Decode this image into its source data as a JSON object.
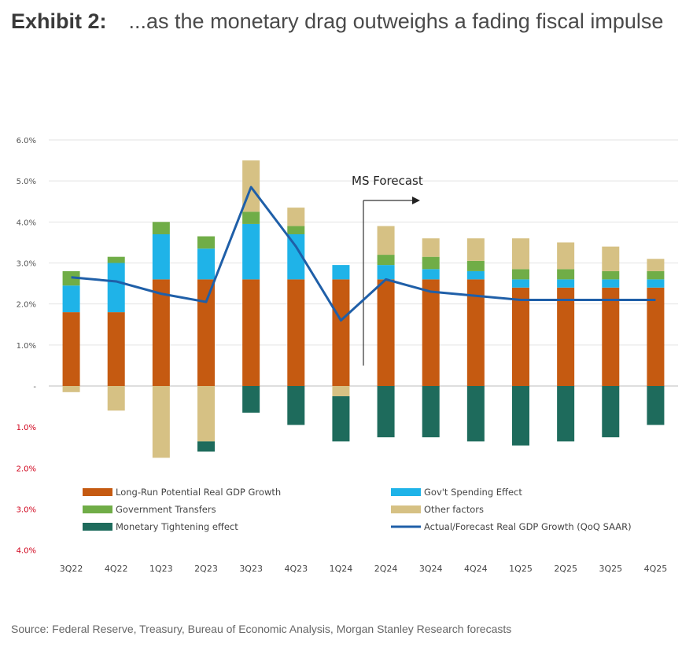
{
  "header": {
    "label": "Exhibit 2:",
    "title": "...as the monetary drag outweighs a fading fiscal impulse"
  },
  "source": "Source: Federal Reserve, Treasury, Bureau of Economic Analysis, Morgan Stanley Research forecasts",
  "colors": {
    "long_run": "#C55A11",
    "govt_spending": "#1FB3E8",
    "govt_transfers": "#70AD47",
    "other": "#D6C184",
    "monetary": "#1E6B5C",
    "line": "#1F5FA8",
    "negative_tick": "#D0021B"
  },
  "chart_data": {
    "type": "bar",
    "stacked": true,
    "categories": [
      "3Q22",
      "4Q22",
      "1Q23",
      "2Q23",
      "3Q23",
      "4Q23",
      "1Q24",
      "2Q24",
      "3Q24",
      "4Q24",
      "1Q25",
      "2Q25",
      "3Q25",
      "4Q25"
    ],
    "ylim": [
      -4.0,
      6.0
    ],
    "y_ticks": [
      {
        "value": 6,
        "label": "6.0%"
      },
      {
        "value": 5,
        "label": "5.0%"
      },
      {
        "value": 4,
        "label": "4.0%"
      },
      {
        "value": 3,
        "label": "3.0%"
      },
      {
        "value": 2,
        "label": "2.0%"
      },
      {
        "value": 1,
        "label": "1.0%"
      },
      {
        "value": 0,
        "label": "-"
      },
      {
        "value": -1,
        "label": "1.0%"
      },
      {
        "value": -2,
        "label": "2.0%"
      },
      {
        "value": -3,
        "label": "3.0%"
      },
      {
        "value": -4,
        "label": "4.0%"
      }
    ],
    "grid": true,
    "series": [
      {
        "name": "Long-Run Potential Real GDP Growth",
        "color_key": "long_run",
        "values": [
          1.8,
          1.8,
          2.6,
          2.6,
          2.6,
          2.6,
          2.6,
          2.6,
          2.6,
          2.6,
          2.4,
          2.4,
          2.4,
          2.4
        ]
      },
      {
        "name": "Gov't Spending Effect",
        "color_key": "govt_spending",
        "values": [
          0.65,
          1.2,
          1.1,
          0.75,
          1.35,
          1.1,
          0.35,
          0.35,
          0.25,
          0.2,
          0.2,
          0.2,
          0.2,
          0.2
        ]
      },
      {
        "name": "Government Transfers",
        "color_key": "govt_transfers",
        "values": [
          0.35,
          0.15,
          0.3,
          0.3,
          0.3,
          0.2,
          0.0,
          0.25,
          0.3,
          0.25,
          0.25,
          0.25,
          0.2,
          0.2
        ]
      },
      {
        "name": "Other factors",
        "color_key": "other",
        "values": [
          -0.15,
          -0.6,
          -1.75,
          -1.35,
          1.25,
          0.45,
          -0.25,
          0.7,
          0.45,
          0.55,
          0.75,
          0.65,
          0.6,
          0.3
        ]
      },
      {
        "name": "Monetary Tightening  effect",
        "color_key": "monetary",
        "values": [
          0.0,
          0.0,
          0.0,
          -0.25,
          -0.65,
          -0.95,
          -1.1,
          -1.25,
          -1.25,
          -1.35,
          -1.45,
          -1.35,
          -1.25,
          -0.95
        ]
      }
    ],
    "line_series": {
      "name": "Actual/Forecast Real GDP Growth (QoQ SAAR)",
      "color_key": "line",
      "values": [
        2.65,
        2.55,
        2.25,
        2.05,
        4.85,
        3.4,
        1.6,
        2.6,
        2.3,
        2.2,
        2.1,
        2.1,
        2.1,
        2.1
      ]
    },
    "annotation": {
      "text": "MS Forecast",
      "after_category": "1Q24"
    }
  }
}
